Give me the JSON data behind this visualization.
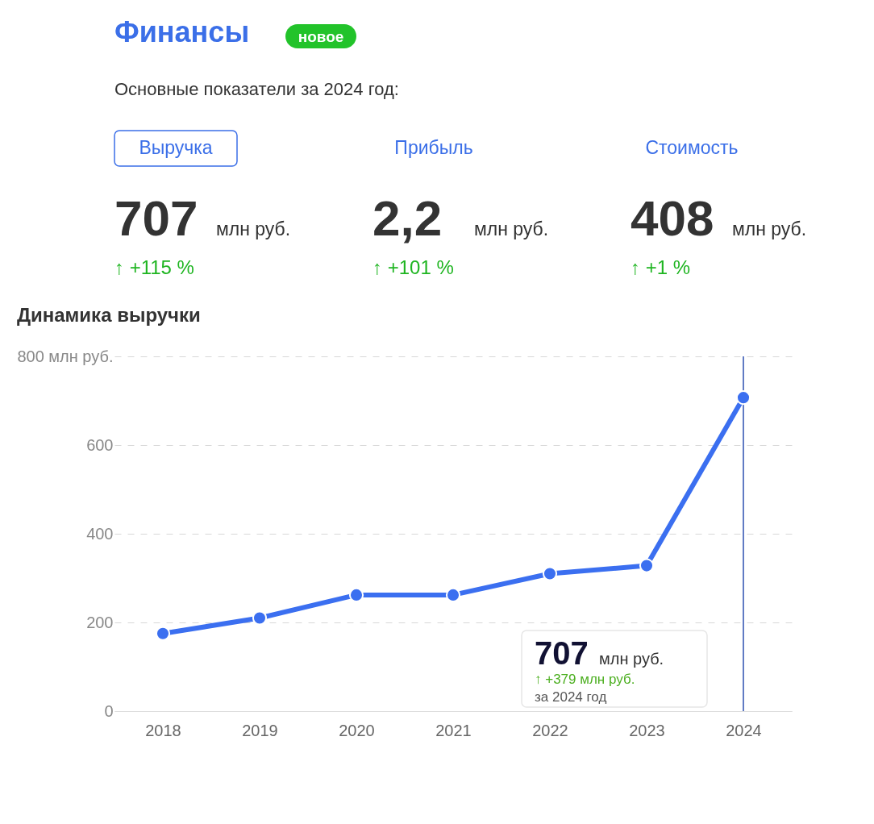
{
  "chart_data": [
    {
      "type": "other",
      "title": "Финансы",
      "subtitle": "Основные показатели за 2024 год:",
      "annotations": [
        "новое",
        "Выручка",
        "Прибыль",
        "Стоимость",
        "707",
        "млн руб.",
        "↑ +115 %",
        "2,2",
        "млн руб.",
        "↑ +101 %",
        "408",
        "млн руб.",
        "↑ +1 %"
      ]
    },
    {
      "type": "line",
      "title": "Динамика выручки",
      "x": [
        2018,
        2019,
        2020,
        2021,
        2022,
        2023,
        2024
      ],
      "xlim": [
        2017.5,
        2024.5
      ],
      "xticks": [
        2018,
        2019,
        2020,
        2021,
        2022,
        2023,
        2024
      ],
      "ylim": [
        0,
        800
      ],
      "yticks": [
        0,
        200,
        400,
        600,
        {
          "value": 800,
          "label": "800 млн руб."
        }
      ],
      "series": [
        {
          "color": "#3b6ff0",
          "line_style": "solid",
          "values": [
            175,
            210,
            262,
            262,
            310,
            328,
            707
          ]
        }
      ],
      "grid": "y",
      "marker": "circle",
      "ref_lines": [
        {
          "axis": "x",
          "value": 2024,
          "color": "#2d4fb0"
        }
      ],
      "annotations": [
        "707",
        "млн руб.",
        "↑ +379 млн руб.",
        "за 2024 год"
      ]
    }
  ]
}
